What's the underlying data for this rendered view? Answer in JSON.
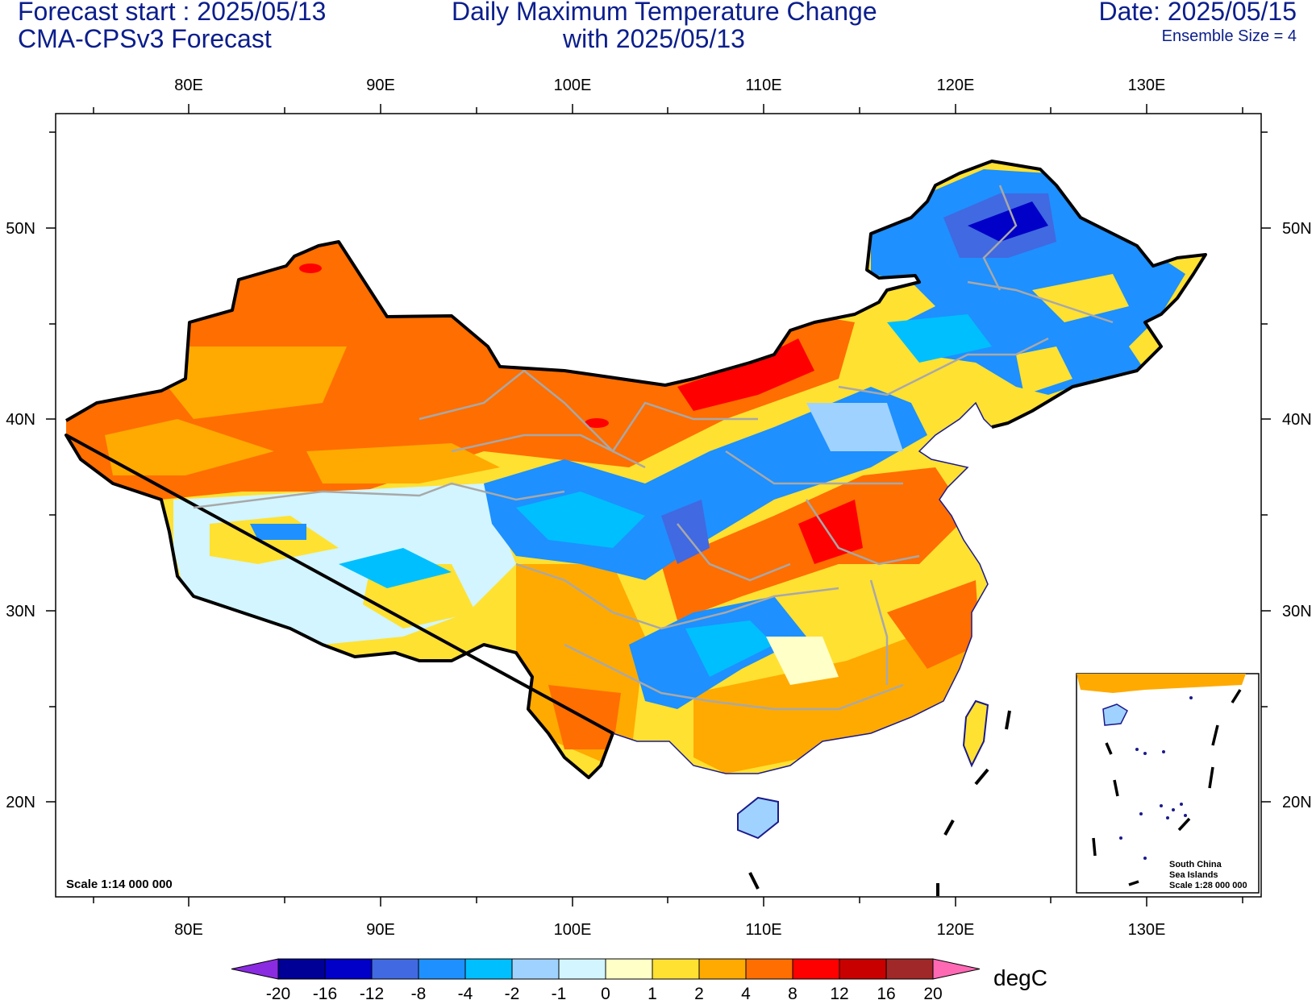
{
  "header": {
    "forecast_start": "Forecast start : 2025/05/13",
    "model": "CMA-CPSv3 Forecast",
    "title_line1": "Daily Maximum Temperature Change",
    "title_line2": "with 2025/05/13",
    "date": "Date: 2025/05/15",
    "ensemble": "Ensemble Size = 4"
  },
  "map": {
    "lon_labels": [
      "80E",
      "90E",
      "100E",
      "110E",
      "120E",
      "130E"
    ],
    "lat_labels": [
      "50N",
      "40N",
      "30N",
      "20N"
    ],
    "scale_text": "Scale 1:14 000 000",
    "inset": {
      "line1": "South China",
      "line2": "Sea Islands",
      "line3": "Scale 1:28 000 000"
    }
  },
  "colorbar": {
    "unit": "degC",
    "labels": [
      "-20",
      "-16",
      "-12",
      "-8",
      "-4",
      "-2",
      "-1",
      "0",
      "1",
      "2",
      "4",
      "8",
      "12",
      "16",
      "20"
    ],
    "colors": [
      "#8a2be2",
      "#000096",
      "#0000c8",
      "#4169e1",
      "#1e90ff",
      "#00bfff",
      "#a0d2ff",
      "#d2f5ff",
      "#ffffc8",
      "#ffe132",
      "#ffaa00",
      "#ff6e00",
      "#ff0000",
      "#c80000",
      "#a02828",
      "#ff69b4"
    ]
  }
}
